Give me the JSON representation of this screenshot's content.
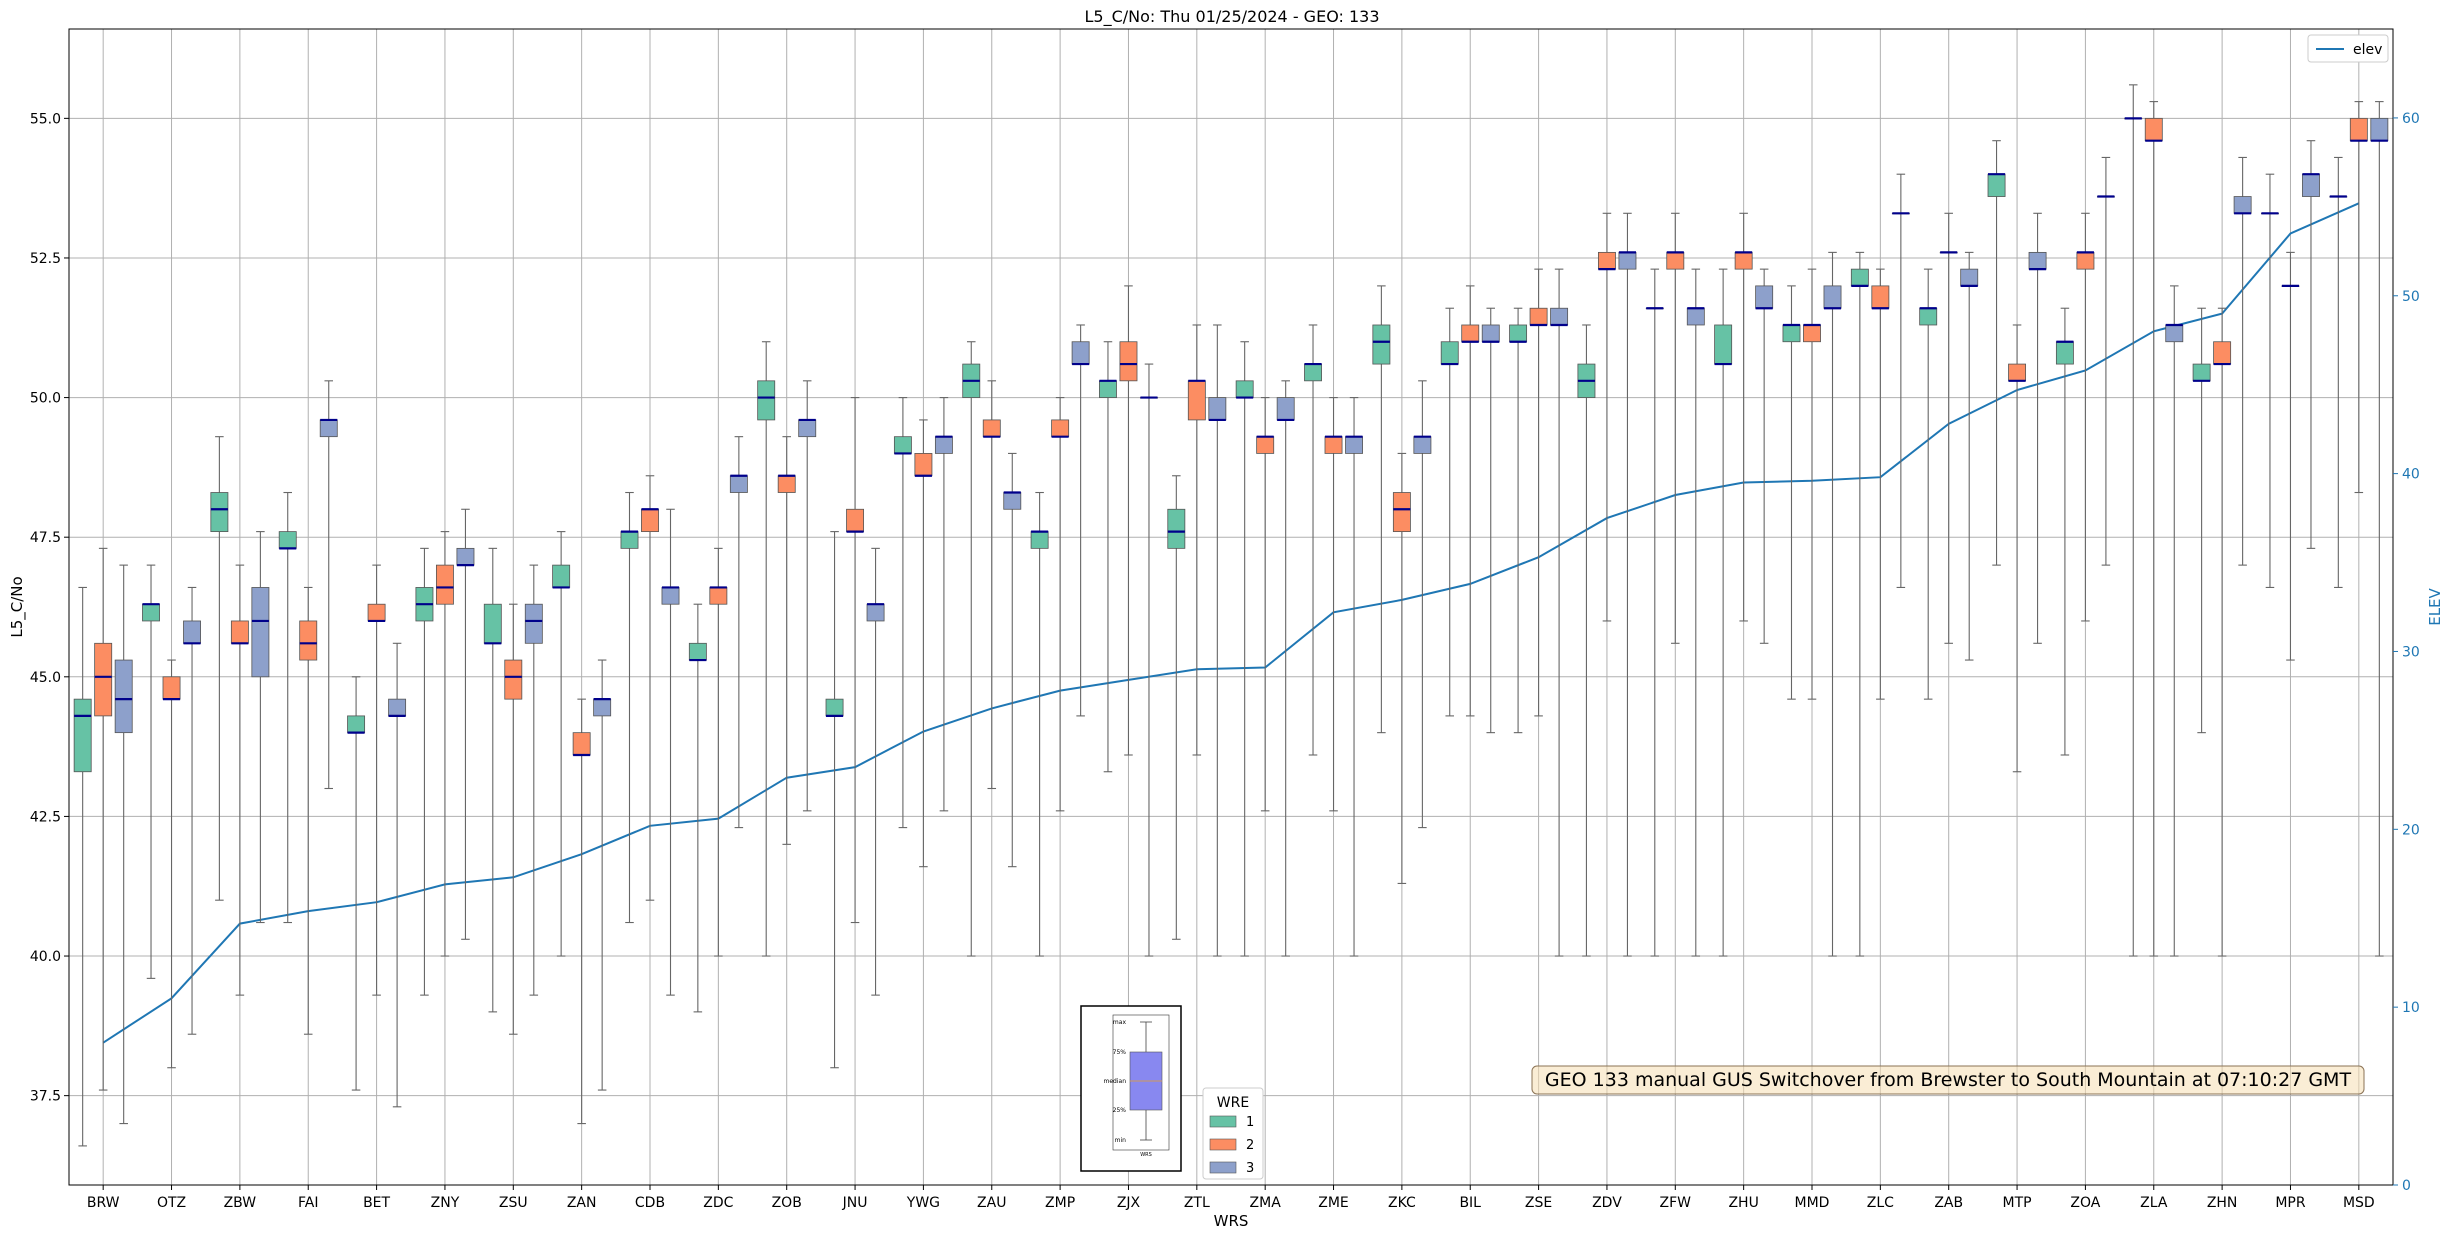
{
  "chart_data": {
    "type": "box",
    "title": "L5_C/No: Thu 01/25/2024 - GEO: 133",
    "xlabel": "WRS",
    "ylabel": "L5_C/No",
    "y2label": "ELEV",
    "ylim": [
      35.9,
      56.6
    ],
    "y2lim": [
      0,
      65
    ],
    "grid": true,
    "yticks": [
      "37.5",
      "40.0",
      "42.5",
      "45.0",
      "47.5",
      "50.0",
      "52.5",
      "55.0"
    ],
    "y2ticks": [
      "0",
      "10",
      "20",
      "30",
      "40",
      "50",
      "60"
    ],
    "categories": [
      "BRW",
      "OTZ",
      "ZBW",
      "FAI",
      "BET",
      "ZNY",
      "ZSU",
      "ZAN",
      "CDB",
      "ZDC",
      "ZOB",
      "JNU",
      "YWG",
      "ZAU",
      "ZMP",
      "ZJX",
      "ZTL",
      "ZMA",
      "ZME",
      "ZKC",
      "BIL",
      "ZSE",
      "ZDV",
      "ZFW",
      "ZHU",
      "MMD",
      "ZLC",
      "ZAB",
      "MTP",
      "ZOA",
      "ZLA",
      "ZHN",
      "MPR",
      "MSD"
    ],
    "wre_colors": {
      "1": "#66c2a5",
      "2": "#fc8d62",
      "3": "#8da0cb"
    },
    "boxes": [
      [
        [
          36.6,
          43.3,
          44.3,
          44.6,
          46.6
        ],
        [
          37.6,
          44.3,
          45.0,
          45.6,
          47.3
        ],
        [
          37.0,
          44.0,
          44.6,
          45.3,
          47.0
        ]
      ],
      [
        [
          39.6,
          46.0,
          46.3,
          46.3,
          47.0
        ],
        [
          38.0,
          44.6,
          44.6,
          45.0,
          45.3
        ],
        [
          38.6,
          45.6,
          45.6,
          46.0,
          46.6
        ]
      ],
      [
        [
          41.0,
          47.6,
          48.0,
          48.3,
          49.3
        ],
        [
          39.3,
          45.6,
          45.6,
          46.0,
          47.0
        ],
        [
          40.6,
          45.0,
          46.0,
          46.6,
          47.6
        ]
      ],
      [
        [
          40.6,
          47.3,
          47.3,
          47.6,
          48.3
        ],
        [
          38.6,
          45.3,
          45.6,
          46.0,
          46.6
        ],
        [
          43.0,
          49.3,
          49.6,
          49.6,
          50.3
        ]
      ],
      [
        [
          37.6,
          44.0,
          44.0,
          44.3,
          45.0
        ],
        [
          39.3,
          46.0,
          46.0,
          46.3,
          47.0
        ],
        [
          37.3,
          44.3,
          44.3,
          44.6,
          45.6
        ]
      ],
      [
        [
          39.3,
          46.0,
          46.3,
          46.6,
          47.3
        ],
        [
          40.0,
          46.3,
          46.6,
          47.0,
          47.6
        ],
        [
          40.3,
          47.0,
          47.0,
          47.3,
          48.0
        ]
      ],
      [
        [
          39.0,
          45.6,
          45.6,
          46.3,
          47.3
        ],
        [
          38.6,
          44.6,
          45.0,
          45.3,
          46.3
        ],
        [
          39.3,
          45.6,
          46.0,
          46.3,
          47.0
        ]
      ],
      [
        [
          40.0,
          46.6,
          46.6,
          47.0,
          47.6
        ],
        [
          37.0,
          43.6,
          43.6,
          44.0,
          44.6
        ],
        [
          37.6,
          44.3,
          44.6,
          44.6,
          45.3
        ]
      ],
      [
        [
          40.6,
          47.3,
          47.6,
          47.6,
          48.3
        ],
        [
          41.0,
          47.6,
          48.0,
          48.0,
          48.6
        ],
        [
          39.3,
          46.3,
          46.6,
          46.6,
          48.0
        ]
      ],
      [
        [
          39.0,
          45.3,
          45.3,
          45.6,
          46.3
        ],
        [
          40.0,
          46.3,
          46.6,
          46.6,
          47.3
        ],
        [
          42.3,
          48.3,
          48.6,
          48.6,
          49.3
        ]
      ],
      [
        [
          40.0,
          49.6,
          50.0,
          50.3,
          51.0
        ],
        [
          42.0,
          48.3,
          48.6,
          48.6,
          49.3
        ],
        [
          42.6,
          49.3,
          49.6,
          49.6,
          50.3
        ]
      ],
      [
        [
          38.0,
          44.3,
          44.3,
          44.6,
          47.6
        ],
        [
          40.6,
          47.6,
          47.6,
          48.0,
          50.0
        ],
        [
          39.3,
          46.0,
          46.3,
          46.3,
          47.3
        ]
      ],
      [
        [
          42.3,
          49.0,
          49.0,
          49.3,
          50.0
        ],
        [
          41.6,
          48.6,
          48.6,
          49.0,
          49.6
        ],
        [
          42.6,
          49.0,
          49.3,
          49.3,
          50.0
        ]
      ],
      [
        [
          40.0,
          50.0,
          50.3,
          50.6,
          51.0
        ],
        [
          43.0,
          49.3,
          49.3,
          49.6,
          50.3
        ],
        [
          41.6,
          48.0,
          48.3,
          48.3,
          49.0
        ]
      ],
      [
        [
          40.0,
          47.3,
          47.6,
          47.6,
          48.3
        ],
        [
          42.6,
          49.3,
          49.3,
          49.6,
          50.0
        ],
        [
          44.3,
          50.6,
          50.6,
          51.0,
          51.3
        ]
      ],
      [
        [
          43.3,
          50.0,
          50.3,
          50.3,
          51.0
        ],
        [
          43.6,
          50.3,
          50.6,
          51.0,
          52.0
        ],
        [
          40.0,
          50.0,
          50.0,
          50.0,
          50.6
        ]
      ],
      [
        [
          40.3,
          47.3,
          47.6,
          48.0,
          48.6
        ],
        [
          43.6,
          49.6,
          50.3,
          50.3,
          51.3
        ],
        [
          40.0,
          49.6,
          49.6,
          50.0,
          51.3
        ]
      ],
      [
        [
          40.0,
          50.0,
          50.0,
          50.3,
          51.0
        ],
        [
          42.6,
          49.0,
          49.3,
          49.3,
          50.0
        ],
        [
          40.0,
          49.6,
          49.6,
          50.0,
          50.3
        ]
      ],
      [
        [
          43.6,
          50.3,
          50.6,
          50.6,
          51.3
        ],
        [
          42.6,
          49.0,
          49.3,
          49.3,
          50.0
        ],
        [
          40.0,
          49.0,
          49.3,
          49.3,
          50.0
        ]
      ],
      [
        [
          44.0,
          50.6,
          51.0,
          51.3,
          52.0
        ],
        [
          41.3,
          47.6,
          48.0,
          48.3,
          49.0
        ],
        [
          42.3,
          49.0,
          49.3,
          49.3,
          50.3
        ]
      ],
      [
        [
          44.3,
          50.6,
          50.6,
          51.0,
          51.6
        ],
        [
          44.3,
          51.0,
          51.0,
          51.3,
          52.0
        ],
        [
          44.0,
          51.0,
          51.0,
          51.3,
          51.6
        ]
      ],
      [
        [
          44.0,
          51.0,
          51.0,
          51.3,
          51.6
        ],
        [
          44.3,
          51.3,
          51.3,
          51.6,
          52.3
        ],
        [
          40.0,
          51.3,
          51.3,
          51.6,
          52.3
        ]
      ],
      [
        [
          40.0,
          50.0,
          50.3,
          50.6,
          51.3
        ],
        [
          46.0,
          52.3,
          52.3,
          52.6,
          53.3
        ],
        [
          40.0,
          52.3,
          52.6,
          52.6,
          53.3
        ]
      ],
      [
        [
          40.0,
          51.6,
          51.6,
          51.6,
          52.3
        ],
        [
          45.6,
          52.3,
          52.6,
          52.6,
          53.3
        ],
        [
          40.0,
          51.3,
          51.6,
          51.6,
          52.3
        ]
      ],
      [
        [
          40.0,
          50.6,
          50.6,
          51.3,
          52.3
        ],
        [
          46.0,
          52.3,
          52.6,
          52.6,
          53.3
        ],
        [
          45.6,
          51.6,
          51.6,
          52.0,
          52.3
        ]
      ],
      [
        [
          44.6,
          51.0,
          51.3,
          51.3,
          52.0
        ],
        [
          44.6,
          51.0,
          51.3,
          51.3,
          52.3
        ],
        [
          40.0,
          51.6,
          51.6,
          52.0,
          52.6
        ]
      ],
      [
        [
          40.0,
          52.0,
          52.0,
          52.3,
          52.6
        ],
        [
          44.6,
          51.6,
          51.6,
          52.0,
          52.3
        ],
        [
          46.6,
          53.3,
          53.3,
          53.3,
          54.0
        ]
      ],
      [
        [
          44.6,
          51.3,
          51.6,
          51.6,
          52.3
        ],
        [
          45.6,
          52.6,
          52.6,
          52.6,
          53.3
        ],
        [
          45.3,
          52.0,
          52.0,
          52.3,
          52.6
        ]
      ],
      [
        [
          47.0,
          53.6,
          54.0,
          54.0,
          54.6
        ],
        [
          43.3,
          50.3,
          50.3,
          50.6,
          51.3
        ],
        [
          45.6,
          52.3,
          52.3,
          52.6,
          53.3
        ]
      ],
      [
        [
          43.6,
          50.6,
          51.0,
          51.0,
          51.6
        ],
        [
          46.0,
          52.3,
          52.6,
          52.6,
          53.3
        ],
        [
          47.0,
          53.6,
          53.6,
          53.6,
          54.3
        ]
      ],
      [
        [
          40.0,
          55.0,
          55.0,
          55.0,
          55.6
        ],
        [
          40.0,
          54.6,
          54.6,
          55.0,
          55.3
        ],
        [
          40.0,
          51.0,
          51.3,
          51.3,
          52.0
        ]
      ],
      [
        [
          44.0,
          50.3,
          50.3,
          50.6,
          51.6
        ],
        [
          40.0,
          50.6,
          50.6,
          51.0,
          51.6
        ],
        [
          47.0,
          53.3,
          53.3,
          53.6,
          54.3
        ]
      ],
      [
        [
          46.6,
          53.3,
          53.3,
          53.3,
          54.0
        ],
        [
          45.3,
          52.0,
          52.0,
          52.0,
          52.6
        ],
        [
          47.3,
          53.6,
          54.0,
          54.0,
          54.6
        ]
      ],
      [
        [
          46.6,
          53.6,
          53.6,
          53.6,
          54.3
        ],
        [
          48.3,
          54.6,
          54.6,
          55.0,
          55.3
        ],
        [
          40.0,
          54.6,
          54.6,
          55.0,
          55.3
        ]
      ]
    ],
    "elev_series": {
      "name": "elev",
      "color": "#1f77b4",
      "values": [
        8,
        10.5,
        14.7,
        15.4,
        15.9,
        16.9,
        17.3,
        18.6,
        20.2,
        20.6,
        22.9,
        23.5,
        25.5,
        26.8,
        27.8,
        28.4,
        29,
        29.1,
        32.2,
        32.9,
        33.8,
        35.3,
        37.5,
        38.8,
        39.5,
        39.6,
        39.8,
        42.8,
        44.7,
        45.8,
        48,
        49,
        53.5,
        55.2
      ]
    },
    "legend_elev": "elev",
    "legend_wre": {
      "title": "WRE",
      "entries": [
        "1",
        "2",
        "3"
      ]
    },
    "annotation": "GEO 133 manual GUS Switchover from Brewster to South Mountain at 07:10:27 GMT",
    "inset_labels": [
      "max",
      "75%",
      "median",
      "25%",
      "min",
      "WRS"
    ]
  }
}
